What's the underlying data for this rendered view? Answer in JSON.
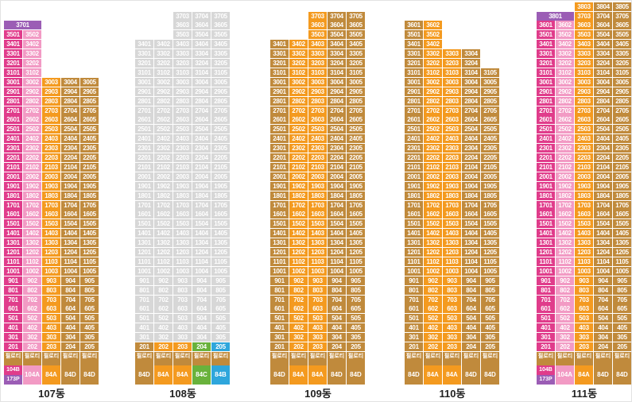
{
  "colors": {
    "84A": "#f49a1f",
    "84D": "#c08a3c",
    "104A": "#f29ac4",
    "104B": "#e03c8b",
    "173P": "#9b5db5",
    "84C": "#69b23c",
    "84B": "#2ea6dc",
    "empty": "#d7d7d7",
    "pilotis": "#c08a3c",
    "top_purple": "#9b5db5"
  },
  "pilotis_label": "필로티",
  "buildings": [
    {
      "name": "107동",
      "cols": [
        {
          "type": "104B",
          "top": 36,
          "pil": false,
          "missing": []
        },
        {
          "type": "104A",
          "top": 36,
          "pil": false,
          "missing": []
        },
        {
          "type": "84A",
          "top": 30,
          "pil": false,
          "missing": []
        },
        {
          "type": "84D",
          "top": 30,
          "pil": false,
          "missing": []
        },
        {
          "type": "84D",
          "top": 30,
          "pil": false,
          "missing": []
        }
      ],
      "types_row": [
        [
          "104B",
          "173P"
        ],
        "104A",
        "84A",
        "84D",
        "84D"
      ],
      "top_span": {
        "label": "3701",
        "from": 0,
        "cols": 2,
        "type": "173P"
      }
    },
    {
      "name": "108동",
      "cols": [
        {
          "type": "84D",
          "top": 34,
          "pil": true,
          "missing": []
        },
        {
          "type": "84A",
          "top": 34,
          "pil": true,
          "missing": []
        },
        {
          "type": "84A",
          "top": 37,
          "pil": true,
          "missing": []
        },
        {
          "type": "84C",
          "top": 37,
          "pil": true,
          "missing": []
        },
        {
          "type": "84B",
          "top": 37,
          "pil": true,
          "missing": []
        }
      ],
      "types_row": [
        "84D",
        "84A",
        "84A",
        "84C",
        "84B"
      ]
    },
    {
      "name": "109동",
      "cols": [
        {
          "type": "84D",
          "top": 34,
          "pil": true,
          "missing": []
        },
        {
          "type": "84A",
          "top": 34,
          "pil": false,
          "missing": []
        },
        {
          "type": "84A",
          "top": 37,
          "pil": false,
          "missing": []
        },
        {
          "type": "84D",
          "top": 37,
          "pil": false,
          "missing": []
        },
        {
          "type": "84D",
          "top": 37,
          "pil": true,
          "missing": []
        }
      ],
      "types_row": [
        "84D",
        "84A",
        "84A",
        "84D",
        "84D"
      ]
    },
    {
      "name": "110동",
      "cols": [
        {
          "type": "84D",
          "top": 36,
          "pil": true,
          "missing": []
        },
        {
          "type": "84A",
          "top": 36,
          "pil": true,
          "missing": []
        },
        {
          "type": "84A",
          "top": 33,
          "pil": true,
          "missing": []
        },
        {
          "type": "84D",
          "top": 33,
          "pil": true,
          "missing": []
        },
        {
          "type": "84D",
          "top": 31,
          "pil": true,
          "missing": []
        }
      ],
      "types_row": [
        "84D",
        "84A",
        "84A",
        "84D",
        "84D"
      ]
    },
    {
      "name": "111동",
      "cols": [
        {
          "type": "104B",
          "top": 37,
          "pil": false,
          "missing": []
        },
        {
          "type": "104A",
          "top": 37,
          "pil": false,
          "missing": []
        },
        {
          "type": "84A",
          "top": 38,
          "pil": false,
          "missing": []
        },
        {
          "type": "84D",
          "top": 38,
          "pil": false,
          "missing": []
        },
        {
          "type": "84D",
          "top": 38,
          "pil": false,
          "missing": []
        }
      ],
      "types_row": [
        [
          "104B",
          "173P"
        ],
        "104A",
        "84A",
        "84D",
        "84D"
      ],
      "top_span": {
        "label": "3801",
        "from": 0,
        "cols": 2,
        "type": "173P"
      }
    }
  ]
}
